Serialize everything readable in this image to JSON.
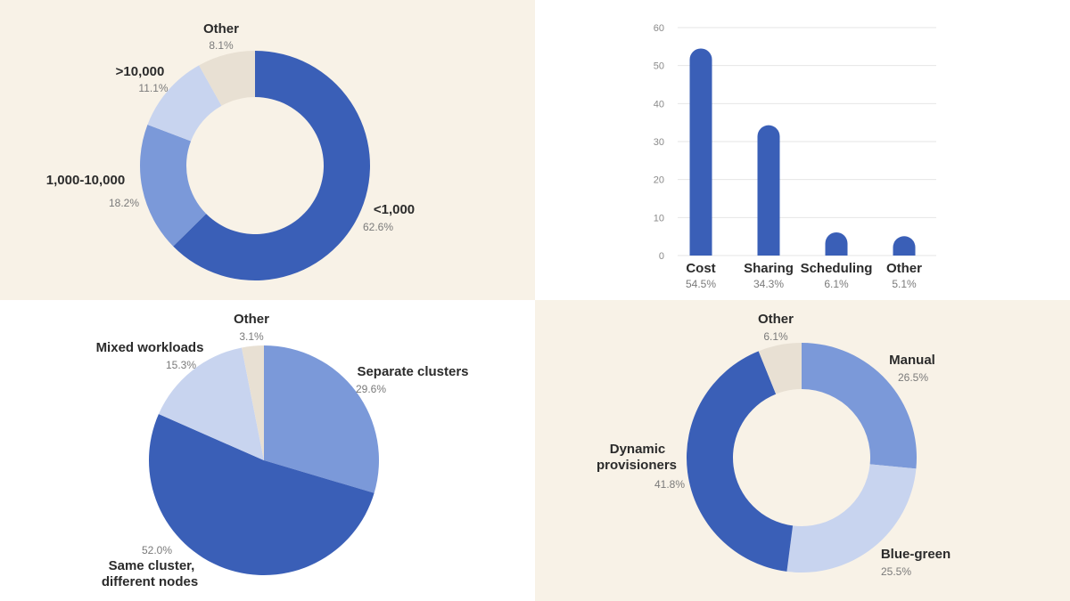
{
  "palette": {
    "dark_blue": "#3a5fb7",
    "mid_blue": "#7b99d9",
    "light_blue": "#c8d4ef",
    "beige": "#e8e0d3",
    "panel_bg": "#f8f2e7"
  },
  "chart_data": [
    {
      "type": "pie",
      "donut": true,
      "slices": [
        {
          "label": "<1,000",
          "pct_label": "62.6%",
          "value": 62.6,
          "color": "#3a5fb7"
        },
        {
          "label": "1,000-10,000",
          "pct_label": "18.2%",
          "value": 18.2,
          "color": "#7b99d9"
        },
        {
          "label": ">10,000",
          "pct_label": "11.1%",
          "value": 11.1,
          "color": "#c8d4ef"
        },
        {
          "label": "Other",
          "pct_label": "8.1%",
          "value": 8.1,
          "color": "#e8e0d3"
        }
      ]
    },
    {
      "type": "bar",
      "categories": [
        "Cost",
        "Sharing",
        "Scheduling",
        "Other"
      ],
      "values": [
        54.5,
        34.3,
        6.1,
        5.1
      ],
      "value_labels": [
        "54.5%",
        "34.3%",
        "6.1%",
        "5.1%"
      ],
      "yticks": [
        "0",
        "10",
        "20",
        "30",
        "40",
        "50",
        "60"
      ],
      "ylim": [
        0,
        60
      ],
      "grid": true,
      "color": "#3a5fb7"
    },
    {
      "type": "pie",
      "donut": false,
      "slices": [
        {
          "label": "Separate clusters",
          "pct_label": "29.6%",
          "value": 29.6,
          "color": "#7b99d9"
        },
        {
          "label": "Same cluster,",
          "label2": "different nodes",
          "pct_label": "52.0%",
          "value": 52.0,
          "color": "#3a5fb7"
        },
        {
          "label": "Mixed workloads",
          "pct_label": "15.3%",
          "value": 15.3,
          "color": "#c8d4ef"
        },
        {
          "label": "Other",
          "pct_label": "3.1%",
          "value": 3.1,
          "color": "#e8e0d3"
        }
      ]
    },
    {
      "type": "pie",
      "donut": true,
      "slices": [
        {
          "label": "Manual",
          "pct_label": "26.5%",
          "value": 26.5,
          "color": "#7b99d9"
        },
        {
          "label": "Blue-green",
          "pct_label": "25.5%",
          "value": 25.5,
          "color": "#c8d4ef"
        },
        {
          "label": "Dynamic",
          "label2": "provisioners",
          "pct_label": "41.8%",
          "value": 41.8,
          "color": "#3a5fb7"
        },
        {
          "label": "Other",
          "pct_label": "6.1%",
          "value": 6.1,
          "color": "#e8e0d3"
        }
      ]
    }
  ]
}
